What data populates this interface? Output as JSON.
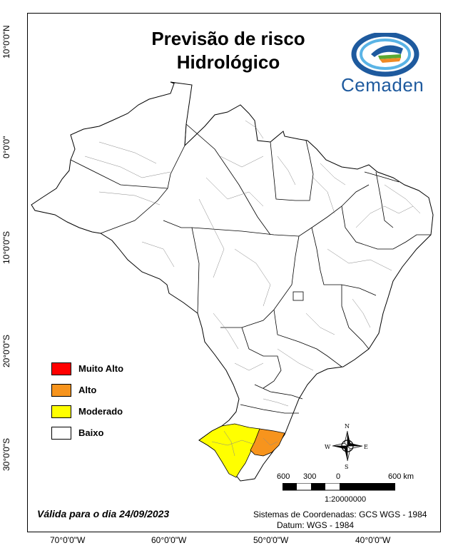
{
  "title": {
    "line1": "Previsão de risco",
    "line2": "Hidrológico"
  },
  "logo": {
    "name": "cemaden-logo",
    "text": "Cemaden",
    "colors": {
      "ring": "#1e5a9e",
      "green": "#5aa832",
      "orange": "#f08a24",
      "lightblue": "#5ab4e6"
    }
  },
  "latitude_labels": [
    "10°0'0\"N",
    "0°0'0\"",
    "10°0'0\"S",
    "20°0'0\"S",
    "30°0'0\"S"
  ],
  "longitude_labels": [
    "70°0'0\"W",
    "60°0'0\"W",
    "50°0'0\"W",
    "40°0'0\"W"
  ],
  "legend": [
    {
      "label": "Muito Alto",
      "color": "#ff0000"
    },
    {
      "label": "Alto",
      "color": "#f7941d"
    },
    {
      "label": "Moderado",
      "color": "#ffff00"
    },
    {
      "label": "Baixo",
      "color": "#ffffff"
    }
  ],
  "compass": {
    "n": "N",
    "s": "S",
    "e": "E",
    "w": "W"
  },
  "scale_bar": {
    "labels": [
      "600",
      "300",
      "0",
      "600 km"
    ],
    "ratio": "1:20000000"
  },
  "valid_date": "Válida para o dia 24/09/2023",
  "coordinate_system": "Sistemas de Coordenadas: GCS WGS - 1984",
  "datum": "Datum: WGS - 1984",
  "map_regions": [
    {
      "name": "rio-grande-do-sul-west",
      "risk": "Moderado"
    },
    {
      "name": "rio-grande-do-sul-east",
      "risk": "Alto"
    }
  ]
}
